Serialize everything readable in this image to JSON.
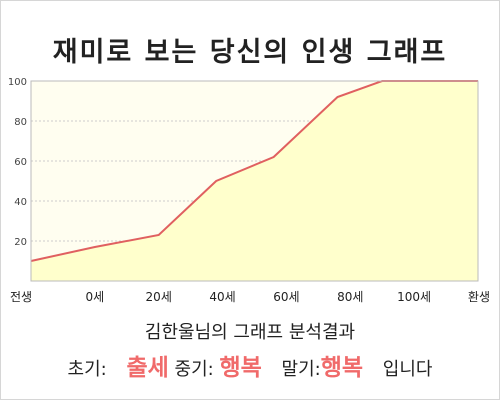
{
  "title": "재미로 보는 당신의 인생 그래프",
  "subtitle": "김한울님의 그래프 분석결과",
  "verdict": {
    "early_label": "초기:",
    "early_value": "출세",
    "mid_label": "중기:",
    "mid_value": "행복",
    "late_label": "말기:",
    "late_value": "행복",
    "ending": "입니다"
  },
  "colors": {
    "line": "#e06060",
    "fill": "#ffffcc",
    "grid": "#cccccc"
  },
  "chart_data": {
    "type": "area",
    "categories": [
      "전생",
      "0세",
      "20세",
      "40세",
      "60세",
      "80세",
      "100세",
      "환생"
    ],
    "x": [
      0,
      1,
      2,
      2.9,
      3.8,
      4.8,
      5.5,
      6.4,
      7.0
    ],
    "values": [
      10,
      17,
      23,
      50,
      62,
      92,
      100,
      100,
      100
    ],
    "yticks": [
      20,
      40,
      60,
      80,
      100
    ],
    "ylim": [
      0,
      100
    ],
    "grid": true,
    "legend": "none"
  }
}
